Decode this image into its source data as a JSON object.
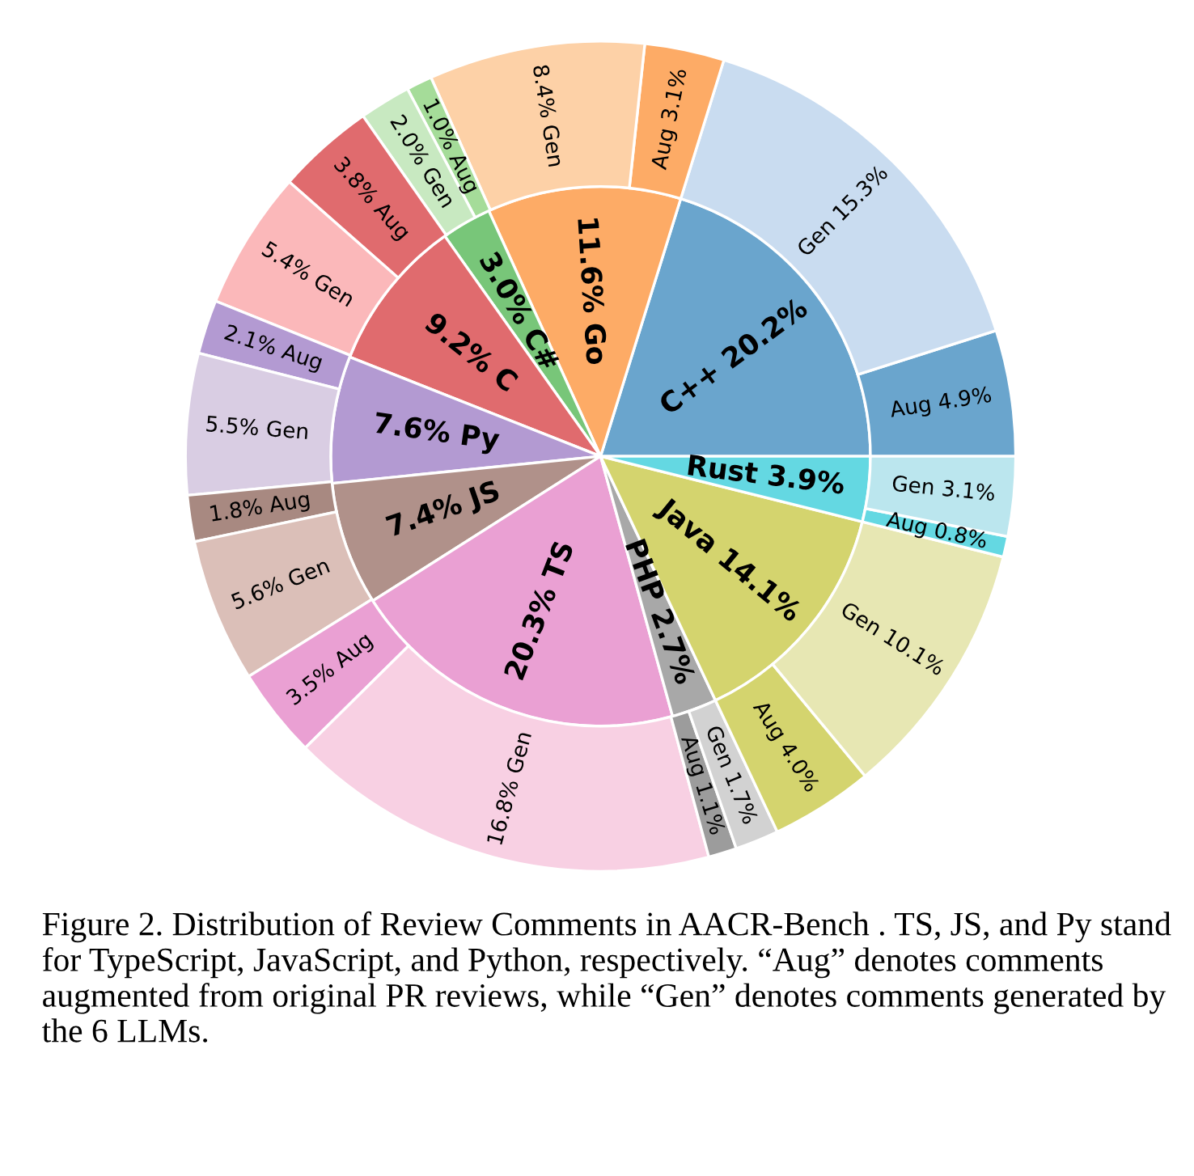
{
  "chart_data": {
    "type": "pie",
    "series": [
      {
        "type": "pie",
        "values": [
          20.2,
          11.6,
          3.0,
          9.2,
          7.6,
          7.4,
          20.3,
          2.7,
          14.1,
          3.9
        ],
        "colors": [
          "#6aa5cd",
          "#fdab66",
          "#78c679",
          "#e06b6e",
          "#b39ad2",
          "#b0918a",
          "#eaa0d3",
          "#a8a8a8",
          "#d4d46e",
          "#64d8e2"
        ],
        "value_labels": [
          "C++ 20.2%",
          "11.6% Go",
          "3.0% C#",
          "9.2% C",
          "7.6% Py",
          "7.4% JS",
          "20.3% TS",
          "PHP 2.7%",
          "Java 14.1%",
          "Rust 3.9%"
        ]
      },
      {
        "type": "donut",
        "values": [
          4.9,
          15.3,
          3.1,
          8.4,
          1.0,
          2.0,
          3.8,
          5.4,
          2.1,
          5.5,
          1.8,
          5.6,
          3.5,
          16.8,
          1.1,
          1.7,
          4.0,
          10.1,
          0.8,
          3.1
        ],
        "colors": [
          "#6aa5cd",
          "#c9dcf0",
          "#fdab66",
          "#fdd1a7",
          "#a5dc99",
          "#c8e9c1",
          "#e06b6e",
          "#fbb8ba",
          "#b39ad2",
          "#d9cde3",
          "#a88981",
          "#dbbfb8",
          "#eaa0d3",
          "#f8d0e3",
          "#9c9c9c",
          "#d2d2d2",
          "#d4d46e",
          "#e7e7b3",
          "#64d8e2",
          "#bbe6ee"
        ],
        "value_labels": [
          "Aug 4.9%",
          "Gen 15.3%",
          "Aug 3.1%",
          "8.4% Gen",
          "1.0% Aug",
          "2.0% Gen",
          "3.8% Aug",
          "5.4% Gen",
          "2.1% Aug",
          "5.5% Gen",
          "1.8% Aug",
          "5.6% Gen",
          "3.5% Aug",
          "16.8% Gen",
          "Aug 1.1%",
          "Gen 1.7%",
          "Aug 4.0%",
          "Gen 10.1%",
          "Aug 0.8%",
          "Gen 3.1%"
        ]
      }
    ],
    "annotations": [
      "Figure 2. Distribution of Review Comments in AACR-Bench . TS, JS, and Py stand for TypeScript, JavaScript, and Python, respectively. “Aug” denotes comments augmented from original PR reviews, while “Gen” denotes comments generated by the 6 LLMs."
    ]
  }
}
